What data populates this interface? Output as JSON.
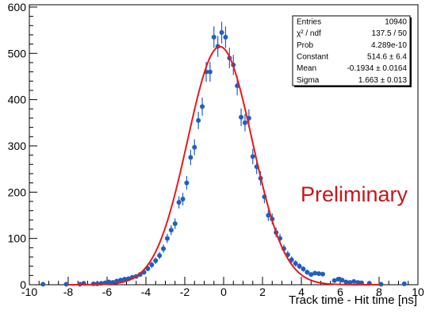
{
  "chart_data": {
    "type": "scatter",
    "xlabel": "Track time - Hit time [ns]",
    "ylabel": "",
    "xlim": [
      -10,
      10
    ],
    "ylim": [
      0,
      605
    ],
    "x_ticks": [
      -10,
      -8,
      -6,
      -4,
      -2,
      0,
      2,
      4,
      6,
      8,
      10
    ],
    "y_ticks": [
      0,
      100,
      200,
      300,
      400,
      500,
      600
    ],
    "grid": false,
    "annotation": "Preliminary",
    "colors": {
      "points": "#1f5fbf",
      "fit": "#e8191a",
      "annotation": "#c8141b"
    },
    "fit": {
      "type": "gaussian",
      "constant": 514.6,
      "mean": -0.1934,
      "sigma": 1.663
    },
    "stats_box": {
      "rows": [
        {
          "label": "Entries",
          "value": "10940"
        },
        {
          "label": "χ² / ndf",
          "value": "137.5 / 50"
        },
        {
          "label": "Prob",
          "value": "4.289e-10"
        },
        {
          "label": "Constant",
          "value": "514.6 ± 6.4"
        },
        {
          "label": "Mean",
          "value": "-0.1934 ± 0.0164"
        },
        {
          "label": "Sigma",
          "value": "1.663 ± 0.013"
        }
      ]
    },
    "points": [
      {
        "x": -9.3,
        "y": 1
      },
      {
        "x": -8.1,
        "y": 1
      },
      {
        "x": -7.4,
        "y": 1
      },
      {
        "x": -7.2,
        "y": 3
      },
      {
        "x": -6.7,
        "y": 2
      },
      {
        "x": -6.5,
        "y": 2
      },
      {
        "x": -6.3,
        "y": 3
      },
      {
        "x": -6.1,
        "y": 4
      },
      {
        "x": -5.9,
        "y": 6
      },
      {
        "x": -5.7,
        "y": 5
      },
      {
        "x": -5.5,
        "y": 8
      },
      {
        "x": -5.3,
        "y": 10
      },
      {
        "x": -5.1,
        "y": 12
      },
      {
        "x": -4.9,
        "y": 13
      },
      {
        "x": -4.7,
        "y": 16
      },
      {
        "x": -4.5,
        "y": 18
      },
      {
        "x": -4.3,
        "y": 22
      },
      {
        "x": -4.1,
        "y": 27
      },
      {
        "x": -3.9,
        "y": 35
      },
      {
        "x": -3.7,
        "y": 43
      },
      {
        "x": -3.5,
        "y": 52
      },
      {
        "x": -3.3,
        "y": 63
      },
      {
        "x": -3.1,
        "y": 78
      },
      {
        "x": -2.9,
        "y": 100
      },
      {
        "x": -2.7,
        "y": 118
      },
      {
        "x": -2.5,
        "y": 132
      },
      {
        "x": -2.3,
        "y": 178
      },
      {
        "x": -2.1,
        "y": 185
      },
      {
        "x": -1.9,
        "y": 220
      },
      {
        "x": -1.7,
        "y": 275
      },
      {
        "x": -1.5,
        "y": 297
      },
      {
        "x": -1.3,
        "y": 355
      },
      {
        "x": -1.1,
        "y": 385
      },
      {
        "x": -0.9,
        "y": 460
      },
      {
        "x": -0.7,
        "y": 460
      },
      {
        "x": -0.5,
        "y": 535
      },
      {
        "x": -0.3,
        "y": 515
      },
      {
        "x": -0.1,
        "y": 545
      },
      {
        "x": 0.1,
        "y": 535
      },
      {
        "x": 0.3,
        "y": 490
      },
      {
        "x": 0.5,
        "y": 475
      },
      {
        "x": 0.7,
        "y": 430
      },
      {
        "x": 0.9,
        "y": 362
      },
      {
        "x": 1.1,
        "y": 350
      },
      {
        "x": 1.3,
        "y": 360
      },
      {
        "x": 1.5,
        "y": 277
      },
      {
        "x": 1.7,
        "y": 255
      },
      {
        "x": 1.9,
        "y": 230
      },
      {
        "x": 2.1,
        "y": 190
      },
      {
        "x": 2.3,
        "y": 150
      },
      {
        "x": 2.5,
        "y": 142
      },
      {
        "x": 2.7,
        "y": 113
      },
      {
        "x": 2.9,
        "y": 100
      },
      {
        "x": 3.1,
        "y": 78
      },
      {
        "x": 3.3,
        "y": 65
      },
      {
        "x": 3.5,
        "y": 54
      },
      {
        "x": 3.7,
        "y": 46
      },
      {
        "x": 3.9,
        "y": 40
      },
      {
        "x": 4.1,
        "y": 34
      },
      {
        "x": 4.3,
        "y": 27
      },
      {
        "x": 4.5,
        "y": 22
      },
      {
        "x": 4.7,
        "y": 25
      },
      {
        "x": 4.9,
        "y": 24
      },
      {
        "x": 5.1,
        "y": 23
      },
      {
        "x": 5.7,
        "y": 9
      },
      {
        "x": 5.9,
        "y": 12
      },
      {
        "x": 6.1,
        "y": 10
      },
      {
        "x": 6.3,
        "y": 6
      },
      {
        "x": 6.5,
        "y": 5
      },
      {
        "x": 6.7,
        "y": 7
      },
      {
        "x": 6.9,
        "y": 5
      },
      {
        "x": 7.1,
        "y": 4
      },
      {
        "x": 7.5,
        "y": 3
      },
      {
        "x": 8.1,
        "y": 1
      },
      {
        "x": 9.3,
        "y": 2
      }
    ]
  }
}
